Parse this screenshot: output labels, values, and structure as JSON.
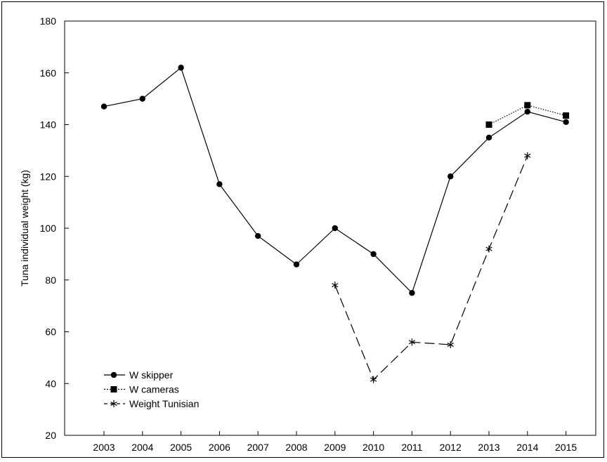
{
  "chart_data": {
    "type": "line",
    "title": "",
    "xlabel": "",
    "ylabel": "Tuna individual weight (kg)",
    "x": [
      "2003",
      "2004",
      "2005",
      "2006",
      "2007",
      "2008",
      "2009",
      "2010",
      "2011",
      "2012",
      "2013",
      "2014",
      "2015"
    ],
    "ylim": [
      20,
      180
    ],
    "yticks": [
      20,
      40,
      60,
      80,
      100,
      120,
      140,
      160,
      180
    ],
    "grid": false,
    "legend_position": "bottom-left",
    "series": [
      {
        "name": "W skipper",
        "marker": "circle",
        "line": "solid",
        "values": [
          147,
          150,
          162,
          117,
          97,
          86,
          100,
          90,
          75,
          120,
          135,
          145,
          141
        ]
      },
      {
        "name": "W cameras",
        "marker": "square",
        "line": "dotted",
        "values": [
          null,
          null,
          null,
          null,
          null,
          null,
          null,
          null,
          null,
          null,
          140,
          147.5,
          143.5
        ]
      },
      {
        "name": "Weight Tunisian",
        "marker": "asterisk",
        "line": "dashed",
        "values": [
          null,
          null,
          null,
          null,
          null,
          null,
          78,
          41.5,
          56,
          55,
          92,
          128,
          null
        ]
      }
    ]
  }
}
